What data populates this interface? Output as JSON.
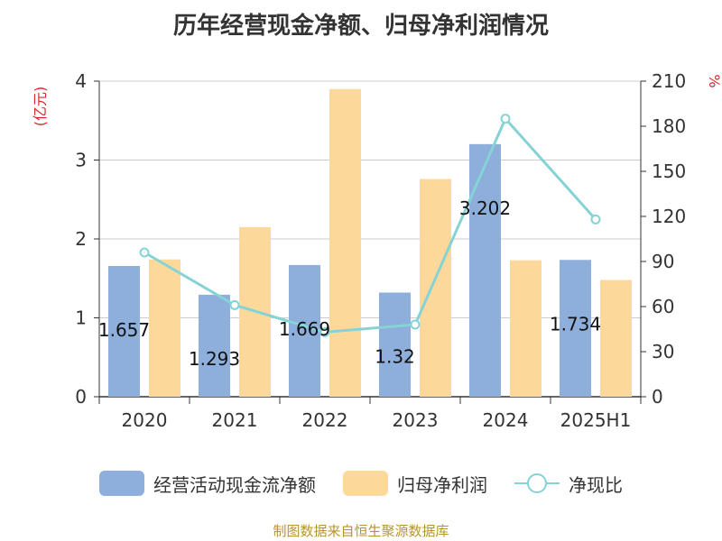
{
  "title": "历年经营现金净额、归母净利润情况",
  "source": "制图数据来自恒生聚源数据库",
  "chart_data": {
    "type": "bar",
    "categories": [
      "2020",
      "2021",
      "2022",
      "2023",
      "2024",
      "2025H1"
    ],
    "y_left": {
      "unit": "(亿元)",
      "ticks": [
        "0",
        "1",
        "2",
        "3",
        "4"
      ],
      "range": [
        0,
        4
      ]
    },
    "y_right": {
      "unit": "%",
      "ticks": [
        "0",
        "30",
        "60",
        "90",
        "120",
        "150",
        "180",
        "210"
      ],
      "range": [
        0,
        210
      ]
    },
    "grid": true,
    "legend_position": "bottom",
    "series": [
      {
        "name": "经营活动现金流净额",
        "kind": "bar",
        "axis": "left",
        "color": "#8eaedb",
        "values": [
          1.657,
          1.293,
          1.669,
          1.32,
          3.202,
          1.734
        ],
        "labels": [
          "1.657",
          "1.293",
          "1.669",
          "1.32",
          "3.202",
          "1.734"
        ]
      },
      {
        "name": "归母净利润",
        "kind": "bar",
        "axis": "left",
        "color": "#fdd89b",
        "values": [
          1.74,
          2.15,
          3.9,
          2.76,
          1.73,
          1.48
        ]
      },
      {
        "name": "净现比",
        "kind": "line",
        "axis": "right",
        "color": "#86d3d6",
        "values": [
          96,
          61,
          43,
          48,
          185,
          118
        ]
      }
    ]
  }
}
